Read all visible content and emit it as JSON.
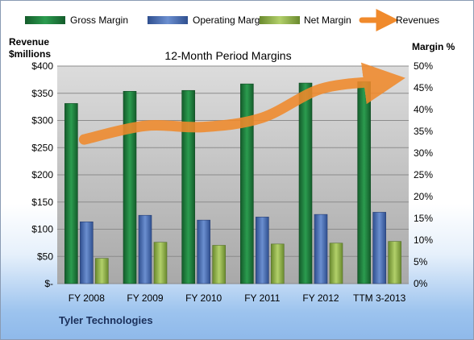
{
  "chart_data": {
    "type": "bar",
    "title": "12-Month Period Margins",
    "ylabel_left_line1": "Revenue",
    "ylabel_left_line2": "$millions",
    "ylabel_right": "Margin  %",
    "footer": "Tyler Technologies",
    "categories": [
      "FY 2008",
      "FY 2009",
      "FY 2010",
      "FY 2011",
      "FY 2012",
      "TTM 3-2013"
    ],
    "left_axis": {
      "min": 0,
      "max": 400,
      "ticks": [
        "$-",
        "$50",
        "$100",
        "$150",
        "$200",
        "$250",
        "$300",
        "$350",
        "$400"
      ]
    },
    "right_axis": {
      "min": 0,
      "max": 50,
      "ticks": [
        "0%",
        "5%",
        "10%",
        "15%",
        "20%",
        "25%",
        "30%",
        "35%",
        "40%",
        "45%",
        "50%"
      ]
    },
    "series": [
      {
        "name": "Gross Margin",
        "axis": "right",
        "color": "#1e7d3c",
        "values": [
          41.4,
          44.2,
          44.4,
          45.9,
          46.1,
          46.4
        ]
      },
      {
        "name": "Operating Margin",
        "axis": "right",
        "color": "#4a6fb5",
        "values": [
          14.2,
          15.7,
          14.6,
          15.3,
          15.9,
          16.4
        ]
      },
      {
        "name": "Net Margin",
        "axis": "right",
        "color": "#8fb04a",
        "values": [
          5.8,
          9.5,
          8.8,
          9.1,
          9.3,
          9.7
        ]
      },
      {
        "name": "Revenues",
        "axis": "left",
        "type": "line",
        "color": "#f08a2c",
        "values": [
          265,
          290,
          288,
          305,
          358,
          372
        ]
      }
    ],
    "legend_position": "top"
  }
}
